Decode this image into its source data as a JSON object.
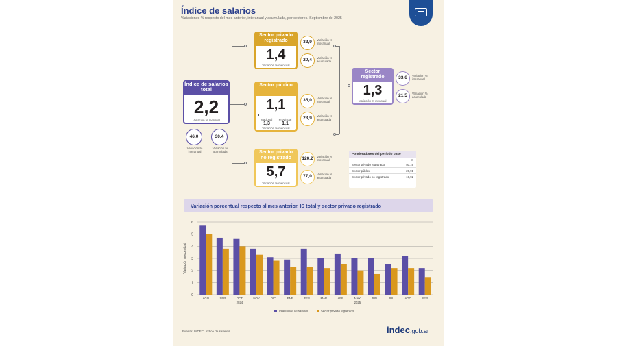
{
  "header": {
    "title": "Índice de salarios",
    "subtitle": "Variaciones % respecto del mes anterior, interanual y acumulada, por sectores. Septiembre de 2025"
  },
  "colors": {
    "total": "#5b4fa6",
    "privado": "#d9a52b",
    "publico": "#e6b43c",
    "registrado": "#9a86c6",
    "noregistrado": "#f0c75a",
    "bar_total": "#5b4fa6",
    "bar_privado": "#d9981e"
  },
  "total": {
    "label": "Índice de salarios total",
    "value": "2,2",
    "caption": "Variación % mensual",
    "interanual": "46,0",
    "interanual_label": "Variación % interanual",
    "acumulada": "30,4",
    "acumulada_label": "Variación % acumulada"
  },
  "privado_registrado": {
    "label": "Sector privado registrado",
    "value": "1,4",
    "caption": "Variación % mensual",
    "interanual": "32,9",
    "interanual_label": "Variación % interanual",
    "acumulada": "20,4",
    "acumulada_label": "Variación % acumulada"
  },
  "publico": {
    "label": "Sector público",
    "value": "1,1",
    "caption": "Variación % mensual",
    "nacional_label": "Nacional",
    "nacional": "1,3",
    "provincial_label": "Provincial",
    "provincial": "1,1",
    "interanual": "35,0",
    "interanual_label": "Variación % interanual",
    "acumulada": "23,9",
    "acumulada_label": "Variación % acumulada"
  },
  "no_registrado": {
    "label": "Sector privado no registrado",
    "value": "5,7",
    "caption": "Variación % mensual",
    "interanual": "120,2",
    "interanual_label": "Variación % interanual",
    "acumulada": "77,0",
    "acumulada_label": "Variación % acumulada"
  },
  "registrado": {
    "label": "Sector registrado",
    "value": "1,3",
    "caption": "Variación % mensual",
    "interanual": "33,6",
    "interanual_label": "Variación % interanual",
    "acumulada": "21,5",
    "acumulada_label": "Variación % acumulada"
  },
  "ponderadores": {
    "title": "Ponderadores del período base",
    "unit": "%",
    "rows": [
      {
        "label": "Sector privado registrado",
        "value": "50,16"
      },
      {
        "label": "Sector público",
        "value": "26,91"
      },
      {
        "label": "Sector privado no registrado",
        "value": "19,92"
      }
    ]
  },
  "chart_band_title": "Variación porcentual respecto al mes anterior. IS total y sector privado registrado",
  "chart_data": {
    "type": "bar",
    "categories": [
      "AGO",
      "SEP",
      "OCT",
      "NOV",
      "DIC",
      "ENE",
      "FEB",
      "MAR",
      "ABR",
      "MAY",
      "JUN",
      "JUL",
      "AGO",
      "SEP"
    ],
    "year_labels": [
      {
        "label": "2024",
        "from": 0,
        "to": 4
      },
      {
        "label": "2025",
        "from": 5,
        "to": 13
      }
    ],
    "series": [
      {
        "name": "Total índice de salarios",
        "values": [
          5.7,
          4.7,
          4.6,
          3.8,
          3.1,
          2.9,
          3.8,
          3.0,
          3.4,
          3.0,
          3.0,
          2.5,
          3.2,
          2.2
        ]
      },
      {
        "name": "Sector privado registrado",
        "values": [
          5.0,
          3.8,
          4.0,
          3.3,
          2.8,
          2.3,
          2.3,
          2.2,
          2.5,
          2.0,
          1.7,
          2.2,
          2.2,
          1.4
        ]
      }
    ],
    "ylabel": "Variación porcentual",
    "ylim": [
      0,
      6
    ],
    "yticks": [
      "0",
      "1",
      "2",
      "3",
      "4",
      "5",
      "6"
    ],
    "grid": true,
    "legend_position": "bottom"
  },
  "footer": {
    "source": "Fuente: INDEC. Índice de salarios.",
    "brand_main": "indec",
    "brand_suffix": ".gob.ar"
  }
}
